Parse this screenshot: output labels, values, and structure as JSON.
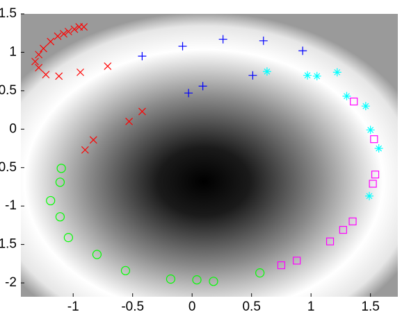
{
  "chart_data": {
    "type": "scatter",
    "xlim": [
      -1.44,
      1.73
    ],
    "ylim": [
      -2.18,
      1.5
    ],
    "xticks": [
      -1,
      -0.5,
      0,
      0.5,
      1,
      1.5
    ],
    "yticks": [
      -2,
      -1.5,
      -1,
      -0.5,
      0,
      0.5,
      1,
      1.5
    ],
    "series": [
      {
        "color": "#ff0000",
        "marker": "x",
        "x": [
          -0.91,
          -0.95,
          -0.99,
          -1.04,
          -1.08,
          -1.13,
          -1.19,
          -1.25,
          -1.29,
          -1.32,
          -1.29,
          -1.23,
          -1.12,
          -0.94,
          -0.71,
          -0.42,
          -0.53,
          -0.83,
          -0.9
        ],
        "y": [
          1.33,
          1.33,
          1.3,
          1.27,
          1.24,
          1.21,
          1.14,
          1.05,
          0.97,
          0.88,
          0.8,
          0.71,
          0.69,
          0.74,
          0.82,
          0.23,
          0.1,
          -0.14,
          -0.27
        ]
      },
      {
        "color": "#0000ff",
        "marker": "+",
        "x": [
          -0.42,
          -0.08,
          0.26,
          0.6,
          0.93,
          0.51,
          0.09,
          -0.03
        ],
        "y": [
          0.95,
          1.08,
          1.17,
          1.15,
          1.02,
          0.7,
          0.56,
          0.47
        ]
      },
      {
        "color": "#00ffff",
        "marker": "*",
        "x": [
          0.63,
          0.97,
          1.05,
          1.22,
          1.3,
          1.46,
          1.5,
          1.57,
          1.49
        ],
        "y": [
          0.75,
          0.7,
          0.69,
          0.74,
          0.43,
          0.3,
          -0.01,
          -0.25,
          -0.87
        ]
      },
      {
        "color": "#ff00ff",
        "marker": "s",
        "x": [
          1.36,
          1.53,
          1.54,
          1.52,
          1.35,
          1.27,
          1.16,
          0.88,
          0.75
        ],
        "y": [
          0.36,
          -0.13,
          -0.59,
          -0.71,
          -1.2,
          -1.31,
          -1.46,
          -1.71,
          -1.77
        ]
      },
      {
        "color": "#00ff00",
        "marker": "o",
        "x": [
          -1.1,
          -1.11,
          -1.19,
          -1.11,
          -1.04,
          -0.8,
          -0.56,
          -0.18,
          0.04,
          0.18,
          0.57
        ],
        "y": [
          -0.51,
          -0.69,
          -0.93,
          -1.14,
          -1.41,
          -1.63,
          -1.84,
          -1.95,
          -1.96,
          -1.98,
          -1.87
        ]
      }
    ]
  }
}
